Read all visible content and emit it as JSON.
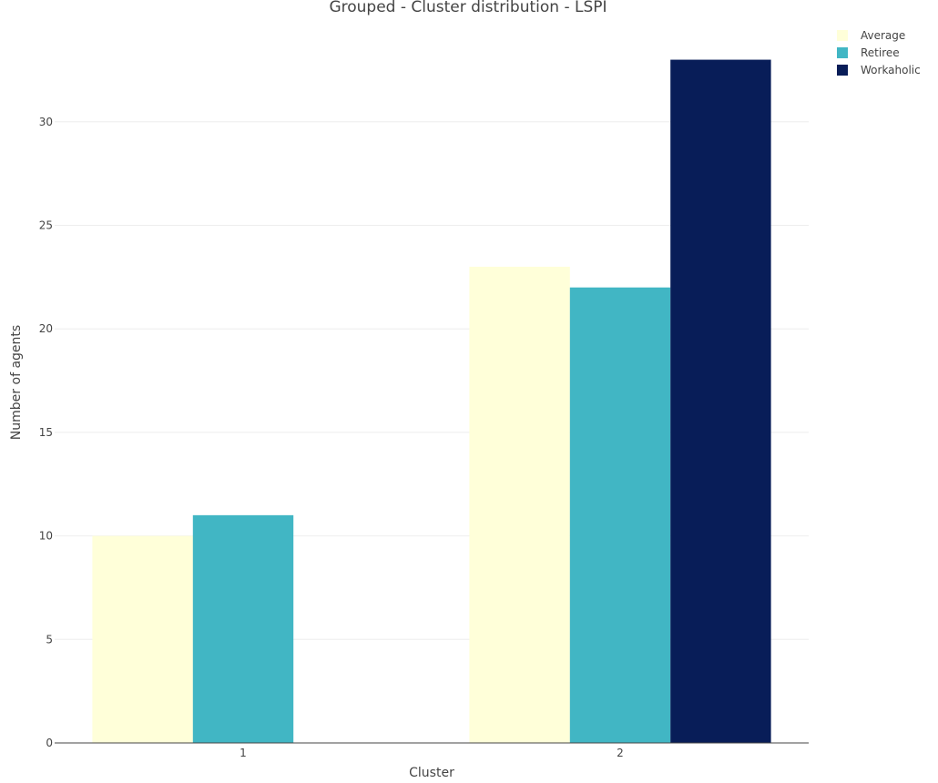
{
  "chart_data": {
    "type": "bar",
    "title": "Grouped - Cluster distribution - LSPI",
    "xlabel": "Cluster",
    "ylabel": "Number of agents",
    "categories": [
      "1",
      "2"
    ],
    "series": [
      {
        "name": "Average",
        "color": "#ffffd9",
        "values": [
          10,
          23
        ]
      },
      {
        "name": "Retiree",
        "color": "#41b6c4",
        "values": [
          11,
          22
        ]
      },
      {
        "name": "Workaholic",
        "color": "#081d58",
        "values": [
          null,
          33
        ]
      }
    ],
    "yticks": [
      0,
      5,
      10,
      15,
      20,
      25,
      30
    ],
    "ylim": [
      0,
      34.74
    ],
    "grid": true,
    "legend": "top-right"
  }
}
